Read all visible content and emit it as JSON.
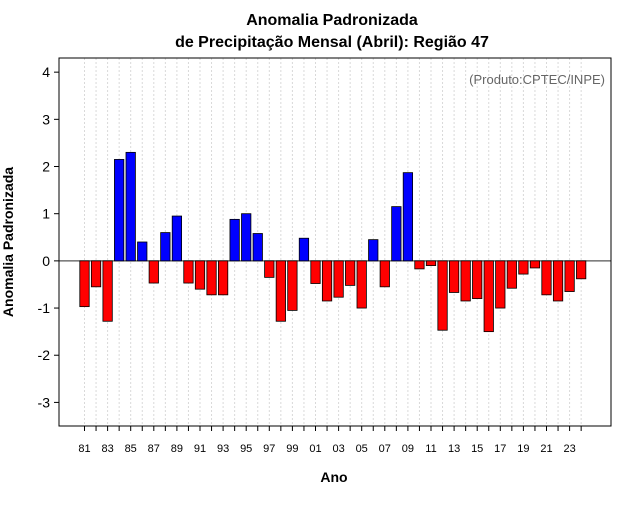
{
  "chart_data": {
    "type": "bar",
    "title_line1": "Anomalia Padronizada",
    "title_line2": "de Precipitação Mensal (Abril): Região 47",
    "xlabel": "Ano",
    "ylabel": "Anomalia Padronizada",
    "credit": "(Produto:CPTEC/INPE)",
    "ylim": [
      -3.5,
      4.3
    ],
    "yticks": [
      -3,
      -2,
      -1,
      0,
      1,
      2,
      3,
      4
    ],
    "ytick_labels": [
      "-3",
      "-2",
      "-1",
      "0",
      "1",
      "2",
      "3",
      "4"
    ],
    "x_tick_labels": [
      "81",
      "83",
      "85",
      "87",
      "89",
      "91",
      "93",
      "95",
      "97",
      "99",
      "01",
      "03",
      "05",
      "07",
      "09",
      "11",
      "13",
      "15",
      "17",
      "19",
      "21",
      "23"
    ],
    "years": [
      1981,
      1982,
      1983,
      1984,
      1985,
      1986,
      1987,
      1988,
      1989,
      1990,
      1991,
      1992,
      1993,
      1994,
      1995,
      1996,
      1997,
      1998,
      1999,
      2000,
      2001,
      2002,
      2003,
      2004,
      2005,
      2006,
      2007,
      2008,
      2009,
      2010,
      2011,
      2012,
      2013,
      2014,
      2015,
      2016,
      2017,
      2018,
      2019,
      2020,
      2021,
      2022,
      2023,
      2024
    ],
    "values": [
      -0.97,
      -0.55,
      -1.28,
      2.15,
      2.3,
      0.4,
      -0.47,
      0.6,
      0.95,
      -0.47,
      -0.6,
      -0.72,
      -0.72,
      0.88,
      1.0,
      0.58,
      -0.35,
      -1.28,
      -1.05,
      0.48,
      -0.48,
      -0.85,
      -0.77,
      -0.52,
      -1.0,
      0.45,
      -0.55,
      1.15,
      1.87,
      -0.17,
      -0.1,
      -1.47,
      -0.67,
      -0.85,
      -0.8,
      -1.5,
      -1.0,
      -0.58,
      -0.28,
      -0.15,
      -0.72,
      -0.85,
      -0.65,
      -0.38
    ],
    "colors": {
      "positive": "#0000ff",
      "negative": "#ff0000",
      "bar_stroke": "#000000",
      "grid": "#d9d9d9",
      "zero_line": "#555555",
      "credit_text": "#666666"
    }
  }
}
